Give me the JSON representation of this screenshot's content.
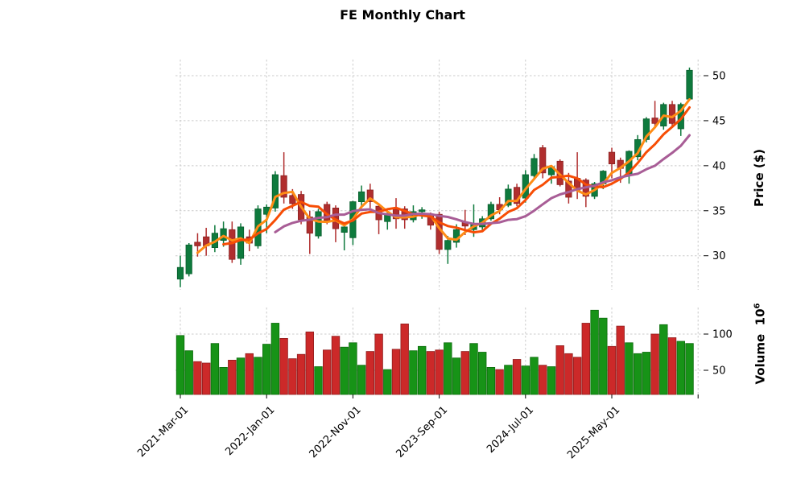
{
  "title": "FE Monthly Chart",
  "price_axis": {
    "label": "Price ($)",
    "ticks": [
      30,
      35,
      40,
      45,
      50
    ]
  },
  "volume_axis": {
    "label": "Volume",
    "unit_base": "10",
    "unit_exp": "6",
    "ticks": [
      50,
      100
    ]
  },
  "x_axis": {
    "tick_labels": [
      "2021-Mar-01",
      "2022-Jan-01",
      "2022-Nov-01",
      "2023-Sep-01",
      "2024-Jul-01",
      "2025-May-01"
    ],
    "tick_step": 10,
    "extra_unlabeled_tick_index": 60
  },
  "colors": {
    "up": "#0e7a3d",
    "up_edge": "#0a5e2e",
    "down": "#b02e2e",
    "down_edge": "#8a2222",
    "volume_up": "#179317",
    "volume_up_edge": "#0c6b0c",
    "volume_down": "#cc2929",
    "volume_down_edge": "#8f1d1d",
    "ma_fast": "#ff8c15",
    "ma_mid": "#f74d05",
    "ma_slow": "#a85d96",
    "grid": "#cbcbcb"
  },
  "chart_data": {
    "type": "candlestick",
    "title": "FE Monthly Chart",
    "xlabel": "",
    "ylabel": "Price ($)",
    "ylabel2": "Volume 10^6",
    "grid": true,
    "legend": false,
    "price_ylim": [
      26.0,
      51.8
    ],
    "volume_ylim_millions": [
      16.7,
      137.8
    ],
    "dates": [
      "2021-03-01",
      "2021-04-01",
      "2021-05-01",
      "2021-06-01",
      "2021-07-01",
      "2021-08-01",
      "2021-09-01",
      "2021-10-01",
      "2021-11-01",
      "2021-12-01",
      "2022-01-01",
      "2022-02-01",
      "2022-03-01",
      "2022-04-01",
      "2022-05-01",
      "2022-06-01",
      "2022-07-01",
      "2022-08-01",
      "2022-09-01",
      "2022-10-01",
      "2022-11-01",
      "2022-12-01",
      "2023-01-01",
      "2023-02-01",
      "2023-03-01",
      "2023-04-01",
      "2023-05-01",
      "2023-06-01",
      "2023-07-01",
      "2023-08-01",
      "2023-09-01",
      "2023-10-01",
      "2023-11-01",
      "2023-12-01",
      "2024-01-01",
      "2024-02-01",
      "2024-03-01",
      "2024-04-01",
      "2024-05-01",
      "2024-06-01",
      "2024-07-01",
      "2024-08-01",
      "2024-09-01",
      "2024-10-01",
      "2024-11-01",
      "2024-12-01",
      "2025-01-01",
      "2025-02-01",
      "2025-03-01",
      "2025-04-01",
      "2025-05-01",
      "2025-06-01",
      "2025-07-01",
      "2025-08-01",
      "2025-09-01",
      "2025-10-01",
      "2025-11-01",
      "2025-12-01",
      "2026-01-01",
      "2026-02-01"
    ],
    "open": [
      27.4,
      28.0,
      31.5,
      32.1,
      30.9,
      31.7,
      32.9,
      29.7,
      32.1,
      31.1,
      34.6,
      35.3,
      38.9,
      36.7,
      36.8,
      34.3,
      32.2,
      35.7,
      35.3,
      32.6,
      32.0,
      36.0,
      37.3,
      35.5,
      33.8,
      35.3,
      35.2,
      34.0,
      34.9,
      34.4,
      34.6,
      30.7,
      31.5,
      33.7,
      32.9,
      33.2,
      34.1,
      35.7,
      35.6,
      37.6,
      36.4,
      38.9,
      42.0,
      39.0,
      40.5,
      38.3,
      38.6,
      38.4,
      36.6,
      38.0,
      41.5,
      40.6,
      39.0,
      41.0,
      42.9,
      45.3,
      44.4,
      46.8,
      44.1,
      47.4
    ],
    "high": [
      30.0,
      31.4,
      32.5,
      33.1,
      33.4,
      33.8,
      33.8,
      33.6,
      32.9,
      35.6,
      35.7,
      39.4,
      41.5,
      37.4,
      37.2,
      35.0,
      35.2,
      36.0,
      35.6,
      33.4,
      36.1,
      37.8,
      38.0,
      35.8,
      35.0,
      36.4,
      35.5,
      35.6,
      35.4,
      34.8,
      34.9,
      32.2,
      33.5,
      35.1,
      35.7,
      34.4,
      36.0,
      36.5,
      37.9,
      38.0,
      39.5,
      41.3,
      42.3,
      40.0,
      40.7,
      39.2,
      41.5,
      38.6,
      38.2,
      39.5,
      42.0,
      40.9,
      41.7,
      43.4,
      45.4,
      47.2,
      47.0,
      47.2,
      47.0,
      50.9
    ],
    "low": [
      26.5,
      27.7,
      29.9,
      30.0,
      30.4,
      31.0,
      29.2,
      29.0,
      30.5,
      30.8,
      32.5,
      34.9,
      35.8,
      35.2,
      33.5,
      30.2,
      31.9,
      33.5,
      31.5,
      30.6,
      31.2,
      35.5,
      35.3,
      32.4,
      32.9,
      33.0,
      33.0,
      33.7,
      34.1,
      32.9,
      30.2,
      29.1,
      30.9,
      32.3,
      32.1,
      32.8,
      33.9,
      34.6,
      35.4,
      35.5,
      35.9,
      38.6,
      38.6,
      38.0,
      37.7,
      35.8,
      36.3,
      35.4,
      36.3,
      37.4,
      38.6,
      38.1,
      38.0,
      40.6,
      42.6,
      44.3,
      44.0,
      44.3,
      43.3,
      47.2
    ],
    "close": [
      28.7,
      31.2,
      31.1,
      31.1,
      32.5,
      33.0,
      29.6,
      33.2,
      31.4,
      35.2,
      35.4,
      39.0,
      36.5,
      35.8,
      34.0,
      32.5,
      34.9,
      33.9,
      33.0,
      33.2,
      36.0,
      37.1,
      36.0,
      34.0,
      34.7,
      34.1,
      34.0,
      34.9,
      35.1,
      33.4,
      30.7,
      31.7,
      32.9,
      33.3,
      33.6,
      34.1,
      35.7,
      35.1,
      37.4,
      35.8,
      39.0,
      40.8,
      39.2,
      39.9,
      37.9,
      36.5,
      37.3,
      36.6,
      38.0,
      39.4,
      40.2,
      39.7,
      41.6,
      42.9,
      45.2,
      44.7,
      46.8,
      44.7,
      46.8,
      50.6
    ],
    "volume_millions": [
      98,
      77,
      62,
      60,
      87,
      54,
      64,
      67,
      73,
      68,
      86,
      115,
      94,
      66,
      72,
      103,
      55,
      78,
      97,
      82,
      88,
      57,
      76,
      100,
      51,
      79,
      114,
      77,
      83,
      76,
      78,
      88,
      67,
      76,
      87,
      75,
      54,
      51,
      57,
      65,
      56,
      68,
      57,
      55,
      84,
      73,
      68,
      115,
      133,
      122,
      83,
      111,
      88,
      73,
      75,
      100,
      113,
      95,
      90,
      87
    ],
    "moving_averages": [
      {
        "window": 3,
        "color_key": "ma_fast"
      },
      {
        "window": 6,
        "color_key": "ma_mid"
      },
      {
        "window": 12,
        "color_key": "ma_slow"
      }
    ]
  }
}
